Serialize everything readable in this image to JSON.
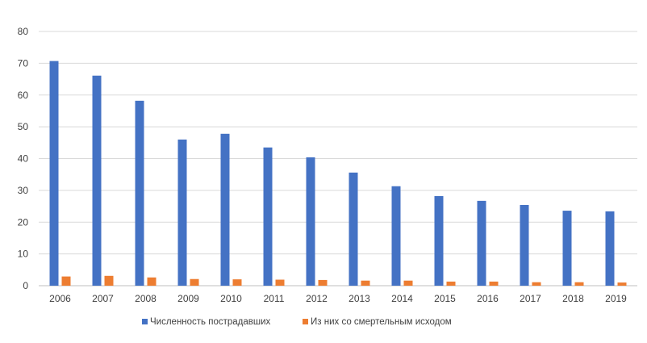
{
  "chart_data": {
    "type": "bar",
    "categories": [
      "2006",
      "2007",
      "2008",
      "2009",
      "2010",
      "2011",
      "2012",
      "2013",
      "2014",
      "2015",
      "2016",
      "2017",
      "2018",
      "2019"
    ],
    "series": [
      {
        "name": "Численность пострадавших",
        "color": "#4472C4",
        "values": [
          70.7,
          66.1,
          58.2,
          46.0,
          47.8,
          43.5,
          40.4,
          35.6,
          31.3,
          28.2,
          26.7,
          25.4,
          23.6,
          23.4
        ]
      },
      {
        "name": "Из них со смертельным исходом",
        "color": "#ED7D31",
        "values": [
          2.9,
          3.1,
          2.6,
          2.1,
          2.0,
          1.9,
          1.8,
          1.6,
          1.6,
          1.3,
          1.3,
          1.1,
          1.1,
          1.0
        ]
      }
    ],
    "ylim": [
      0,
      80
    ],
    "yticks": [
      0,
      10,
      20,
      30,
      40,
      50,
      60,
      70,
      80
    ],
    "grid": true,
    "legend_position": "bottom"
  }
}
